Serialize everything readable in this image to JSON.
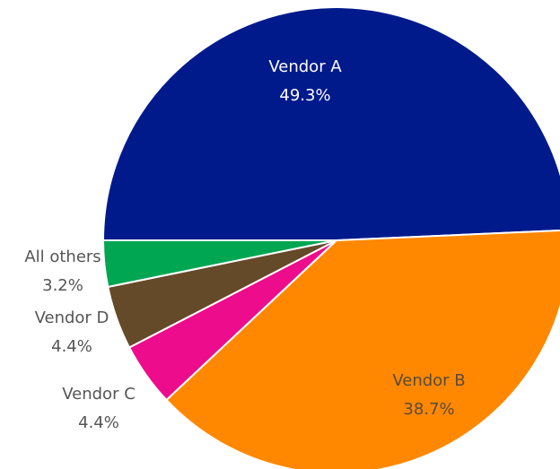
{
  "chart_data": {
    "type": "pie",
    "categories": [
      "Vendor A",
      "Vendor B",
      "Vendor C",
      "Vendor D",
      "All others"
    ],
    "values": [
      49.3,
      38.7,
      4.4,
      4.4,
      3.2
    ],
    "value_labels": [
      "49.3%",
      "38.7%",
      "4.4%",
      "4.4%",
      "3.2%"
    ],
    "colors": [
      "#001a8c",
      "#ff8800",
      "#ec0c8c",
      "#654a2a",
      "#00a651"
    ]
  }
}
